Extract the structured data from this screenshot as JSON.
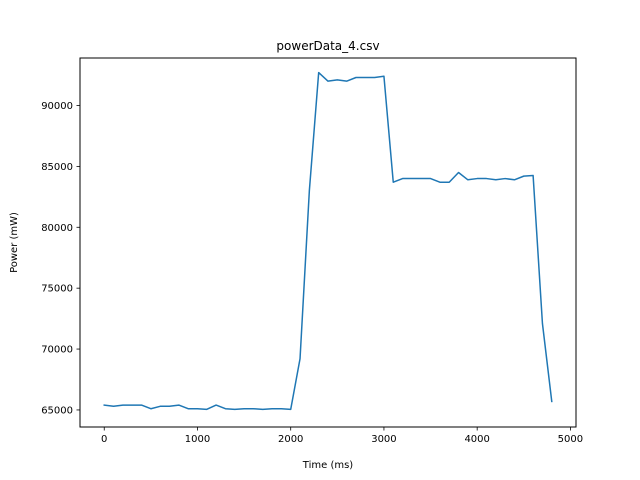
{
  "chart_data": {
    "type": "line",
    "title": "powerData_4.csv",
    "xlabel": "Time (ms)",
    "ylabel": "Power (mW)",
    "xlim": [
      -260,
      5060
    ],
    "ylim": [
      63600,
      93900
    ],
    "xticks": [
      0,
      1000,
      2000,
      3000,
      4000,
      5000
    ],
    "yticks": [
      65000,
      70000,
      75000,
      80000,
      85000,
      90000
    ],
    "grid": false,
    "legend": "none",
    "series": [
      {
        "color": "#1f77b4",
        "x": [
          0,
          100,
          200,
          300,
          400,
          500,
          600,
          700,
          800,
          900,
          1000,
          1100,
          1200,
          1300,
          1400,
          1500,
          1600,
          1700,
          1800,
          1900,
          2000,
          2100,
          2200,
          2300,
          2400,
          2500,
          2600,
          2700,
          2800,
          2900,
          3000,
          3100,
          3200,
          3300,
          3400,
          3500,
          3600,
          3700,
          3800,
          3900,
          4000,
          4100,
          4200,
          4300,
          4400,
          4500,
          4600,
          4700,
          4800
        ],
        "y": [
          65400,
          65300,
          65400,
          65400,
          65400,
          65100,
          65300,
          65300,
          65400,
          65100,
          65100,
          65050,
          65400,
          65100,
          65050,
          65100,
          65100,
          65050,
          65100,
          65100,
          65050,
          69200,
          83000,
          92700,
          92000,
          92100,
          92000,
          92300,
          92300,
          92300,
          92400,
          83700,
          84000,
          84000,
          84000,
          84000,
          83700,
          83700,
          84500,
          83900,
          84000,
          84000,
          83900,
          84000,
          83900,
          84200,
          84250,
          72100,
          65700
        ]
      }
    ]
  }
}
